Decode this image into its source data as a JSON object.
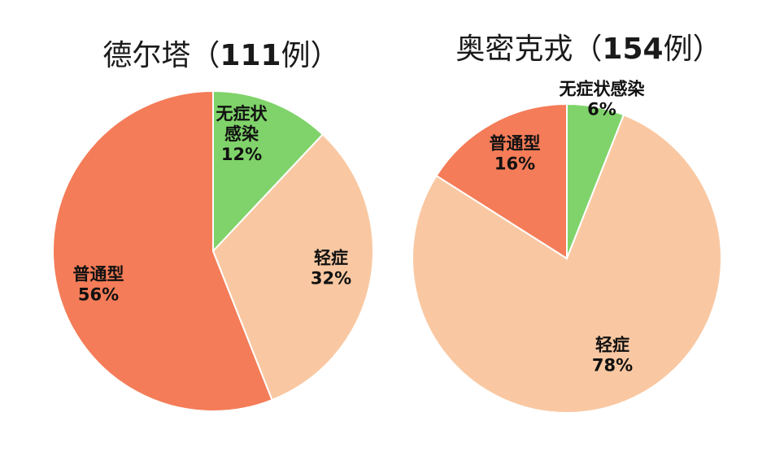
{
  "chart_data": [
    {
      "type": "pie",
      "title_prefix": "德尔塔（",
      "title_number": "111",
      "title_suffix": "例）",
      "slices": [
        {
          "label_lines": [
            "无症状",
            "感染"
          ],
          "percent_text": "12%",
          "value": 12,
          "color": "#7fd36a"
        },
        {
          "label_lines": [
            "轻症"
          ],
          "percent_text": "32%",
          "value": 32,
          "color": "#f9c8a2"
        },
        {
          "label_lines": [
            "普通型"
          ],
          "percent_text": "56%",
          "value": 56,
          "color": "#f47c58"
        }
      ]
    },
    {
      "type": "pie",
      "title_prefix": "奥密克戎（",
      "title_number": "154",
      "title_suffix": "例）",
      "slices": [
        {
          "label_lines": [
            "无症状感染"
          ],
          "percent_text": "6%",
          "value": 6,
          "color": "#7fd36a"
        },
        {
          "label_lines": [
            "轻症"
          ],
          "percent_text": "78%",
          "value": 78,
          "color": "#f9c8a2"
        },
        {
          "label_lines": [
            "普通型"
          ],
          "percent_text": "16%",
          "value": 16,
          "color": "#f47c58"
        }
      ]
    }
  ]
}
